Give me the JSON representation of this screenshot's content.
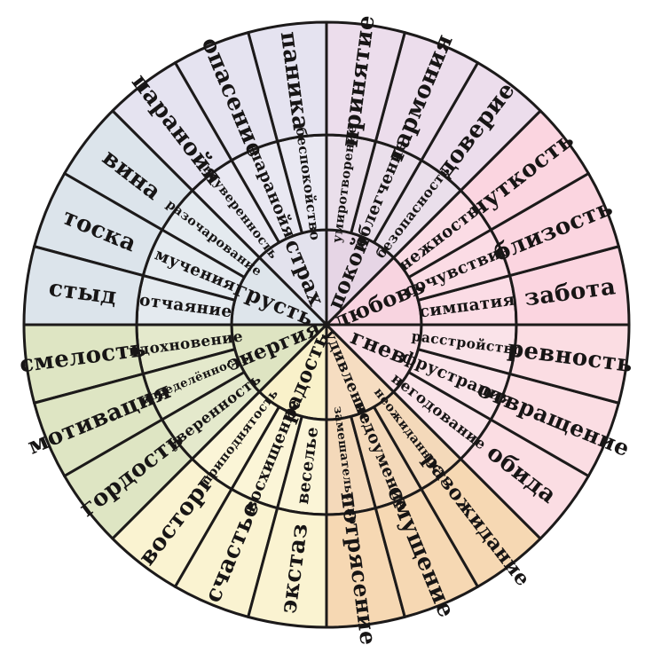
{
  "diagram": {
    "name": "emotion-wheel",
    "language": "ru",
    "background": "#ffffff"
  },
  "chart_data": {
    "type": "wheel",
    "rings": [
      "core",
      "middle",
      "outer"
    ],
    "stroke_color": "#1c1a1a",
    "background": "#ffffff",
    "sector_span_deg": 45,
    "subsegment_span_deg": 15,
    "sectors": [
      {
        "core": "любовь",
        "start_deg": 0,
        "colors": {
          "inner": "#f8d4e0",
          "middle": "#fbdce5",
          "outer": "#fbd5e0"
        },
        "middle": [
          "симпатия",
          "сочувствие",
          "нежность"
        ],
        "outer": [
          "забота",
          "близость",
          "чуткость"
        ]
      },
      {
        "core": "покой",
        "start_deg": 45,
        "colors": {
          "inner": "#e6d5e5",
          "middle": "#eadfeb",
          "outer": "#ecddec"
        },
        "middle": [
          "безопасность",
          "облегчение",
          "умиротворение"
        ],
        "outer": [
          "доверие",
          "гармония",
          "принятие"
        ]
      },
      {
        "core": "страх",
        "start_deg": 90,
        "colors": {
          "inner": "#e3e2ed",
          "middle": "#e9e8f2",
          "outer": "#e5e3f0"
        },
        "middle": [
          "беспокойство",
          "паранойя",
          "неуверенность"
        ],
        "outer": [
          "паника",
          "опасение",
          "паранойя"
        ]
      },
      {
        "core": "грусть",
        "start_deg": 135,
        "colors": {
          "inner": "#dee5eb",
          "middle": "#e4eaef",
          "outer": "#dce4eb"
        },
        "middle": [
          "разочарование",
          "мучения",
          "отчаяние"
        ],
        "outer": [
          "вина",
          "тоска",
          "стыд"
        ]
      },
      {
        "core": "энергия",
        "start_deg": 180,
        "colors": {
          "inner": "#dee4c2",
          "middle": "#e4e9cc",
          "outer": "#dee5c3"
        },
        "middle": [
          "вдохновение",
          "определённость",
          "уверенность"
        ],
        "outer": [
          "смелость",
          "мотивация",
          "гордость"
        ]
      },
      {
        "core": "радость",
        "start_deg": 225,
        "colors": {
          "inner": "#f9f1ca",
          "middle": "#fbf5d7",
          "outer": "#faf3d1"
        },
        "middle": [
          "приподнятость",
          "восхищение",
          "веселье"
        ],
        "outer": [
          "восторг",
          "счастье",
          "экстаз"
        ]
      },
      {
        "core": "удивление",
        "start_deg": 270,
        "colors": {
          "inner": "#f6ddc1",
          "middle": "#f4d9ba",
          "outer": "#f6d8b3"
        },
        "middle": [
          "замешательство",
          "недоумение",
          "неожиданность"
        ],
        "outer": [
          "потрясение",
          "смущение",
          "разожидание"
        ]
      },
      {
        "core": "гнев",
        "start_deg": 315,
        "colors": {
          "inner": "#f8dde5",
          "middle": "#fae3e9",
          "outer": "#fbdde3"
        },
        "middle": [
          "негодование",
          "фрустрация",
          "расстройство"
        ],
        "outer": [
          "обида",
          "отвращение",
          "ревность"
        ]
      }
    ]
  }
}
